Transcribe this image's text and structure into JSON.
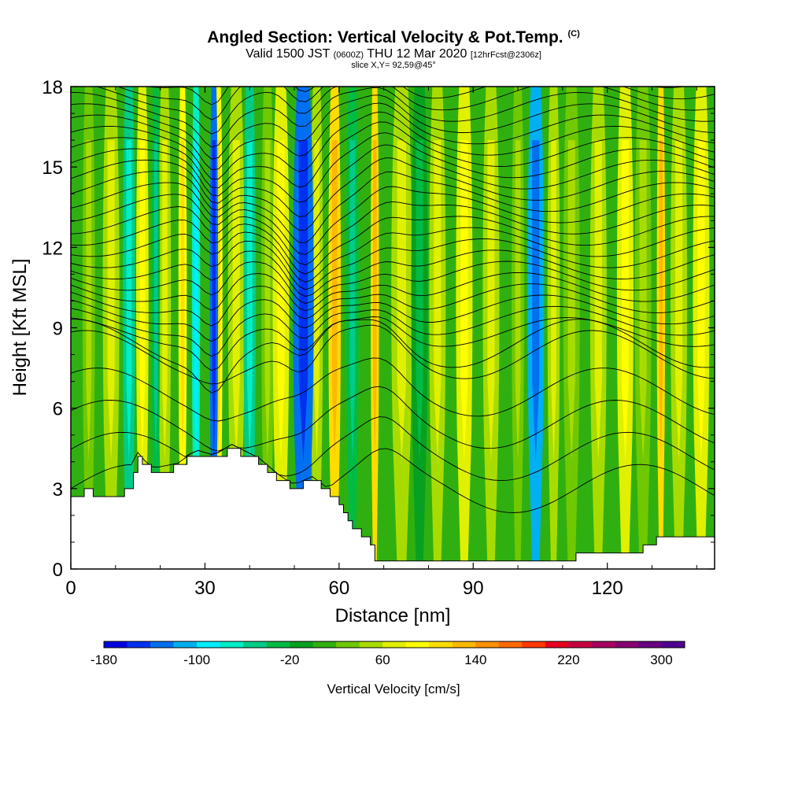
{
  "titles": {
    "main": "Angled Section: Vertical Velocity & Pot.Temp.",
    "main_unit": "(C)",
    "valid_prefix": "Valid 1500 JST",
    "valid_z": "(0600Z)",
    "valid_date": "THU 12 Mar 2020",
    "valid_fcst": "[12hrFcst@2306z]",
    "slice": "slice X,Y= 92,59@45°"
  },
  "chart_data": {
    "type": "heatmap",
    "xlabel": "Distance [nm]",
    "ylabel": "Height [Kft MSL]",
    "xlim": [
      0,
      144
    ],
    "ylim": [
      0,
      18
    ],
    "xticks": [
      0,
      30,
      60,
      90,
      120
    ],
    "yticks": [
      0,
      3,
      6,
      9,
      12,
      15,
      18
    ],
    "colorbar": {
      "label": "Vertical Velocity [cm/s]",
      "ticks": [
        -180,
        -100,
        -20,
        60,
        140,
        220,
        300
      ],
      "range": [
        -180,
        320
      ],
      "step": 20,
      "colors": [
        "#0000e0",
        "#0030f0",
        "#0070f0",
        "#00b0f0",
        "#00eeff",
        "#00eec8",
        "#00cc88",
        "#00bb44",
        "#08a020",
        "#30b010",
        "#70c800",
        "#a8dc00",
        "#e0f000",
        "#ffff00",
        "#ffdc00",
        "#ffb800",
        "#ff9000",
        "#ff6800",
        "#ff3800",
        "#e80020",
        "#c80040",
        "#a80060",
        "#880070",
        "#680080",
        "#500090"
      ]
    },
    "terrain_profile": {
      "x": [
        0,
        3,
        10,
        13,
        15,
        18,
        24,
        28,
        32,
        36,
        42,
        47,
        50,
        54,
        58,
        63,
        66,
        68,
        76,
        112,
        114,
        126,
        130,
        135,
        144
      ],
      "height": [
        2.7,
        2.9,
        2.6,
        3.0,
        4.2,
        3.6,
        3.8,
        4.3,
        4.1,
        4.5,
        4.0,
        3.3,
        3.0,
        3.3,
        2.8,
        1.6,
        1.2,
        0.3,
        0.3,
        0.3,
        0.6,
        0.6,
        1.0,
        1.3,
        1.3
      ]
    },
    "velocity_features": [
      {
        "x": 4,
        "width": 3,
        "value": 20
      },
      {
        "x": 9,
        "width": 4,
        "value": 40
      },
      {
        "x": 13,
        "width": 3,
        "value": -60
      },
      {
        "x": 16,
        "width": 3,
        "value": 60
      },
      {
        "x": 19,
        "width": 2,
        "value": -40
      },
      {
        "x": 21,
        "width": 3,
        "value": 40
      },
      {
        "x": 25,
        "width": 2,
        "value": 80
      },
      {
        "x": 28,
        "width": 2,
        "value": -80
      },
      {
        "x": 32,
        "width": 2,
        "value": -140
      },
      {
        "x": 33,
        "width": 2,
        "value": 80
      },
      {
        "x": 37,
        "width": 4,
        "value": 40
      },
      {
        "x": 40,
        "width": 3,
        "value": -60
      },
      {
        "x": 44,
        "width": 3,
        "value": 20
      },
      {
        "x": 47,
        "width": 4,
        "value": 60
      },
      {
        "x": 52,
        "width": 5,
        "value": -140
      },
      {
        "x": 55,
        "width": 3,
        "value": 40
      },
      {
        "x": 59,
        "width": 3,
        "value": 100
      },
      {
        "x": 63,
        "width": 3,
        "value": -40
      },
      {
        "x": 68,
        "width": 2,
        "value": 100
      },
      {
        "x": 74,
        "width": 5,
        "value": 40
      },
      {
        "x": 78,
        "width": 4,
        "value": -20
      },
      {
        "x": 82,
        "width": 4,
        "value": 40
      },
      {
        "x": 88,
        "width": 4,
        "value": 60
      },
      {
        "x": 94,
        "width": 4,
        "value": 40
      },
      {
        "x": 100,
        "width": 3,
        "value": 20
      },
      {
        "x": 104,
        "width": 4,
        "value": -120
      },
      {
        "x": 108,
        "width": 3,
        "value": 40
      },
      {
        "x": 112,
        "width": 4,
        "value": 20
      },
      {
        "x": 118,
        "width": 4,
        "value": 40
      },
      {
        "x": 124,
        "width": 4,
        "value": 60
      },
      {
        "x": 128,
        "width": 4,
        "value": 20
      },
      {
        "x": 132,
        "width": 2,
        "value": 100
      },
      {
        "x": 136,
        "width": 4,
        "value": 40
      },
      {
        "x": 141,
        "width": 4,
        "value": 60
      }
    ]
  }
}
